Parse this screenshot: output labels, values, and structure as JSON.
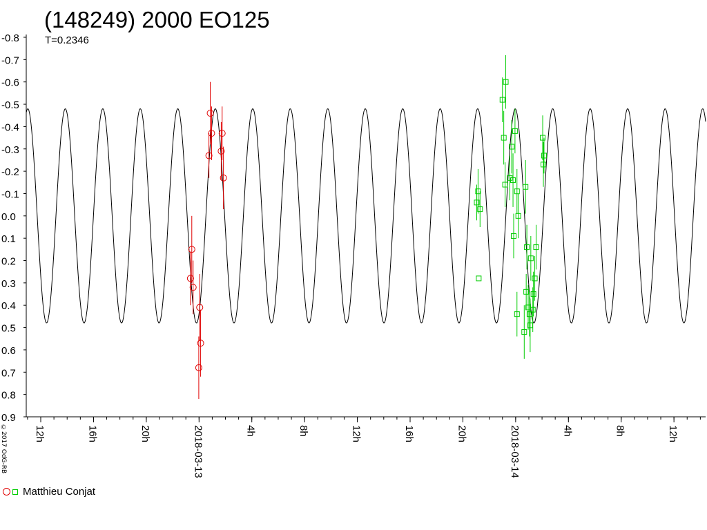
{
  "chart_data": {
    "type": "scatter",
    "title": "(148249) 2000 EO125",
    "subtitle": "T=0.2346",
    "copyright": "©2017 OdG-RB",
    "y_inverted": true,
    "ylim": [
      -0.8,
      0.9
    ],
    "ytick_labels": [
      "-0.8",
      "-0.7",
      "-0.6",
      "-0.5",
      "-0.4",
      "-0.3",
      "-0.2",
      "-0.1",
      "0.0",
      "0.1",
      "0.2",
      "0.3",
      "0.4",
      "0.5",
      "0.6",
      "0.7",
      "0.8",
      "0.9"
    ],
    "x_unit": "hours from 2018-03-13 00:00 UT",
    "xlim": [
      -13.1,
      38.4
    ],
    "xticks": [
      {
        "x": -12,
        "label": "12h"
      },
      {
        "x": -8,
        "label": "16h"
      },
      {
        "x": -4,
        "label": "20h"
      },
      {
        "x": 0,
        "label": "2018-03-13"
      },
      {
        "x": 4,
        "label": "4h"
      },
      {
        "x": 8,
        "label": "8h"
      },
      {
        "x": 12,
        "label": "12h"
      },
      {
        "x": 16,
        "label": "16h"
      },
      {
        "x": 20,
        "label": "20h"
      },
      {
        "x": 24,
        "label": "2018-03-14"
      },
      {
        "x": 28,
        "label": "4h"
      },
      {
        "x": 32,
        "label": "8h"
      },
      {
        "x": 36,
        "label": "12h"
      }
    ],
    "model": {
      "name": "fit curve",
      "color": "#000000",
      "period_hours": 2.842,
      "amplitude_mag": 0.48,
      "peak_time_hours": 1.23
    },
    "legend": [
      {
        "label": "Matthieu Conjat",
        "colors": [
          "#e00000",
          "#00cc00"
        ],
        "position": "bottom-left"
      }
    ],
    "series": [
      {
        "color": "#e00000",
        "marker": "circle",
        "points": [
          {
            "x": -0.55,
            "y": 0.15,
            "err": 0.15
          },
          {
            "x": -0.65,
            "y": 0.28,
            "err": 0.12
          },
          {
            "x": -0.45,
            "y": 0.32,
            "err": 0.12
          },
          {
            "x": 0.05,
            "y": 0.41,
            "err": 0.15
          },
          {
            "x": 0.12,
            "y": 0.57,
            "err": 0.15
          },
          {
            "x": -0.02,
            "y": 0.68,
            "err": 0.14
          },
          {
            "x": 0.75,
            "y": -0.27,
            "err": 0.1
          },
          {
            "x": 0.85,
            "y": -0.46,
            "err": 0.14
          },
          {
            "x": 0.95,
            "y": -0.37,
            "err": 0.12
          },
          {
            "x": 1.75,
            "y": -0.37,
            "err": 0.12
          },
          {
            "x": 1.68,
            "y": -0.29,
            "err": 0.13
          },
          {
            "x": 1.85,
            "y": -0.17,
            "err": 0.14
          }
        ]
      },
      {
        "color": "#00cc00",
        "marker": "square",
        "points": [
          {
            "x": 21.05,
            "y": -0.06,
            "err": 0.08
          },
          {
            "x": 21.15,
            "y": -0.11,
            "err": 0.1
          },
          {
            "x": 21.3,
            "y": -0.03,
            "err": 0.08
          },
          {
            "x": 21.2,
            "y": 0.28,
            "err": 0.0
          },
          {
            "x": 23.0,
            "y": -0.52,
            "err": 0.1
          },
          {
            "x": 23.25,
            "y": -0.6,
            "err": 0.12
          },
          {
            "x": 23.1,
            "y": -0.35,
            "err": 0.12
          },
          {
            "x": 23.2,
            "y": -0.14,
            "err": 0.1
          },
          {
            "x": 23.55,
            "y": -0.17,
            "err": 0.1
          },
          {
            "x": 23.7,
            "y": -0.31,
            "err": 0.12
          },
          {
            "x": 23.8,
            "y": -0.16,
            "err": 0.12
          },
          {
            "x": 23.95,
            "y": -0.38,
            "err": 0.1
          },
          {
            "x": 24.1,
            "y": -0.11,
            "err": 0.1
          },
          {
            "x": 23.85,
            "y": 0.09,
            "err": 0.1
          },
          {
            "x": 24.2,
            "y": 0.0,
            "err": 0.1
          },
          {
            "x": 24.1,
            "y": 0.44,
            "err": 0.1
          },
          {
            "x": 24.75,
            "y": -0.13,
            "err": 0.12
          },
          {
            "x": 24.65,
            "y": 0.52,
            "err": 0.12
          },
          {
            "x": 24.85,
            "y": 0.14,
            "err": 0.1
          },
          {
            "x": 24.8,
            "y": 0.34,
            "err": 0.08
          },
          {
            "x": 24.95,
            "y": 0.41,
            "err": 0.1
          },
          {
            "x": 25.05,
            "y": 0.44,
            "err": 0.1
          },
          {
            "x": 25.1,
            "y": 0.49,
            "err": 0.12
          },
          {
            "x": 25.15,
            "y": 0.19,
            "err": 0.1
          },
          {
            "x": 25.3,
            "y": 0.42,
            "err": 0.1
          },
          {
            "x": 25.35,
            "y": 0.35,
            "err": 0.1
          },
          {
            "x": 25.45,
            "y": 0.28,
            "err": 0.1
          },
          {
            "x": 25.55,
            "y": 0.14,
            "err": 0.1
          },
          {
            "x": 26.05,
            "y": -0.35,
            "err": 0.1
          },
          {
            "x": 26.15,
            "y": -0.27,
            "err": 0.08
          },
          {
            "x": 26.1,
            "y": -0.23,
            "err": 0.1
          }
        ]
      }
    ]
  }
}
